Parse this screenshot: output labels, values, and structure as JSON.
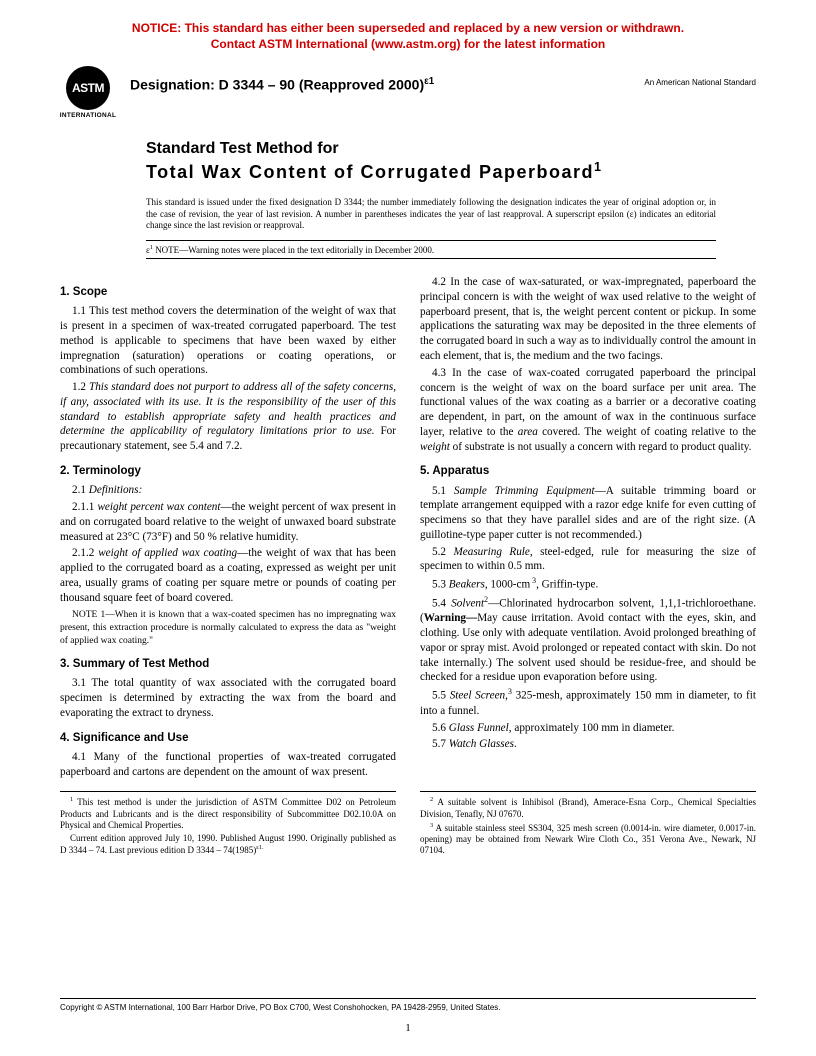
{
  "notice": {
    "line1": "NOTICE: This standard has either been superseded and replaced by a new version or withdrawn.",
    "line2": "Contact ASTM International (www.astm.org) for the latest information"
  },
  "logo": {
    "abbr": "ASTM",
    "sub": "INTERNATIONAL"
  },
  "designation_label": "Designation: D 3344 – 90 (Reapproved 2000)",
  "designation_sup": "ε1",
  "ansi": "An American National Standard",
  "title_line1": "Standard Test Method for",
  "title_line2": "Total Wax Content of Corrugated Paperboard",
  "title_sup": "1",
  "issued": "This standard is issued under the fixed designation D 3344; the number immediately following the designation indicates the year of original adoption or, in the case of revision, the year of last revision. A number in parentheses indicates the year of last reapproval. A superscript epsilon (ε) indicates an editorial change since the last revision or reapproval.",
  "epsilon_note_prefix": "ε",
  "epsilon_note_sup": "1",
  "epsilon_note_label": " NOTE",
  "epsilon_note_text": "—Warning notes were placed in the text editorially in December 2000.",
  "s1_head": "1. Scope",
  "s1_1": "1.1 This test method covers the determination of the weight of wax that is present in a specimen of wax-treated corrugated paperboard. The test method is applicable to specimens that have been waxed by either impregnation (saturation) operations or coating operations, or combinations of such operations.",
  "s1_2a": "1.2 ",
  "s1_2b": "This standard does not purport to address all of the safety concerns, if any, associated with its use. It is the responsibility of the user of this standard to establish appropriate safety and health practices and determine the applicability of regulatory limitations prior to use.",
  "s1_2c": " For precautionary statement, see 5.4 and 7.2.",
  "s2_head": "2. Terminology",
  "s2_1": "2.1 ",
  "s2_1b": "Definitions:",
  "s2_1_1a": "2.1.1 ",
  "s2_1_1b": "weight percent wax content",
  "s2_1_1c": "—the weight percent of wax present in and on corrugated board relative to the weight of unwaxed board substrate measured at 23°C (73°F) and 50 % relative humidity.",
  "s2_1_2a": "2.1.2 ",
  "s2_1_2b": "weight of applied wax coating",
  "s2_1_2c": "—the weight of wax that has been applied to the corrugated board as a coating, expressed as weight per unit area, usually grams of coating per square metre or pounds of coating per thousand square feet of board covered.",
  "note1_label": "NOTE",
  "note1": " 1—When it is known that a wax-coated specimen has no impregnating wax present, this extraction procedure is normally calculated to express the data as \"weight of applied wax coating.\"",
  "s3_head": "3. Summary of Test Method",
  "s3_1": "3.1 The total quantity of wax associated with the corrugated board specimen is determined by extracting the wax from the board and evaporating the extract to dryness.",
  "s4_head": "4. Significance and Use",
  "s4_1": "4.1 Many of the functional properties of wax-treated corrugated paperboard and cartons are dependent on the amount of wax present.",
  "s4_2": "4.2 In the case of wax-saturated, or wax-impregnated, paperboard the principal concern is with the weight of wax used relative to the weight of paperboard present, that is, the weight percent content or pickup. In some applications the saturating wax may be deposited in the three elements of the corrugated board in such a way as to individually control the amount in each element, that is, the medium and the two facings.",
  "s4_3a": "4.3 In the case of wax-coated corrugated paperboard the principal concern is the weight of wax on the board surface per unit area. The functional values of the wax coating as a barrier or a decorative coating are dependent, in part, on the amount of wax in the continuous surface layer, relative to the ",
  "s4_3b": "area",
  "s4_3c": " covered. The weight of coating relative to the ",
  "s4_3d": "weight",
  "s4_3e": " of substrate is not usually a concern with regard to product quality.",
  "s5_head": "5. Apparatus",
  "s5_1a": "5.1 ",
  "s5_1b": "Sample Trimming Equipment",
  "s5_1c": "—A suitable trimming board or template arrangement equipped with a razor edge knife for even cutting of specimens so that they have parallel sides and are of the right size. (A guillotine-type paper cutter is not recommended.)",
  "s5_2a": "5.2 ",
  "s5_2b": "Measuring Rule",
  "s5_2c": ", steel-edged, rule for measuring the size of specimen to within 0.5 mm.",
  "s5_3a": "5.3 ",
  "s5_3b": "Beakers",
  "s5_3c": ", 1000-cm",
  "s5_3d": ", Griffin-type.",
  "s5_4a": "5.4 ",
  "s5_4b": "Solvent",
  "s5_4c": "—Chlorinated hydrocarbon solvent, 1,1,1-trichloroethane. (",
  "s5_4d": "Warning—",
  "s5_4e": "May cause irritation. Avoid contact with the eyes, skin, and clothing. Use only with adequate ventilation. Avoid prolonged breathing of vapor or spray mist. Avoid prolonged or repeated contact with skin. Do not take internally.) The solvent used should be residue-free, and should be checked for a residue upon evaporation before using.",
  "s5_5a": "5.5 ",
  "s5_5b": "Steel Screen",
  "s5_5c": " 325-mesh, approximately 150 mm in diameter, to fit into a funnel.",
  "s5_6a": "5.6 ",
  "s5_6b": "Glass Funnel",
  "s5_6c": ", approximately 100 mm in diameter.",
  "s5_7a": "5.7 ",
  "s5_7b": "Watch Glasses",
  "s5_7c": ".",
  "fn1": " This test method is under the jurisdiction of ASTM Committee D02 on Petroleum Products and Lubricants and is the direct responsibility of Subcommittee D02.10.0A on Physical and Chemical Properties.",
  "fn1b": "Current edition approved July 10, 1990. Published August 1990. Originally published as D 3344 – 74. Last previous edition D 3344 – 74(1985)",
  "fn1b_sup": "ε1.",
  "fn2": " A suitable solvent is Inhibisol (Brand), Amerace-Esna Corp., Chemical Specialties Division, Tenafly, NJ 07670.",
  "fn3": " A suitable stainless steel SS304, 325 mesh screen (0.0014-in. wire diameter, 0.0017-in. opening) may be obtained from Newark Wire Cloth Co., 351 Verona Ave., Newark, NJ 07104.",
  "copyright": "Copyright © ASTM International, 100 Barr Harbor Drive, PO Box C700, West Conshohocken, PA 19428-2959, United States.",
  "pagenum": "1",
  "colors": {
    "notice": "#d00000",
    "text": "#000000",
    "bg": "#ffffff"
  }
}
